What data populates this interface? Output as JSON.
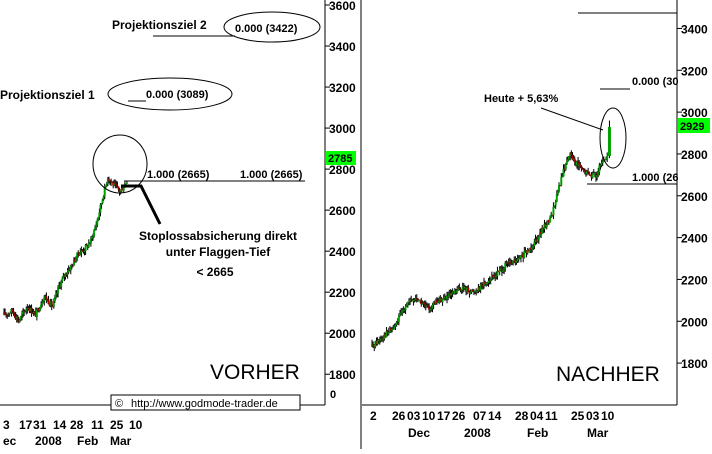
{
  "colors": {
    "bull": "#00a000",
    "bear": "#a00000",
    "wick": "#000000",
    "highlight": "#00ff00",
    "axis": "#000000"
  },
  "chart_data": [
    {
      "type": "candlestick",
      "label": "VORHER",
      "ylim": [
        1650,
        3600
      ],
      "y_ticks": [
        1800,
        2000,
        2200,
        2400,
        2600,
        2800,
        3000,
        3200,
        3400,
        3600
      ],
      "zero_label": "0",
      "current_price": "2785",
      "x_ticks": [
        "3",
        "17",
        "31",
        "14",
        "28",
        "11",
        "25",
        "10"
      ],
      "months": [
        "ec",
        "2008",
        "Feb",
        "Mar"
      ],
      "keypoints": [
        [
          0,
          2090
        ],
        [
          8,
          2110
        ],
        [
          14,
          2060
        ],
        [
          22,
          2130
        ],
        [
          30,
          2090
        ],
        [
          38,
          2180
        ],
        [
          46,
          2130
        ],
        [
          52,
          2230
        ],
        [
          58,
          2290
        ],
        [
          64,
          2330
        ],
        [
          70,
          2390
        ],
        [
          76,
          2410
        ],
        [
          82,
          2450
        ],
        [
          88,
          2550
        ],
        [
          94,
          2680
        ],
        [
          98,
          2760
        ],
        [
          104,
          2720
        ],
        [
          110,
          2690
        ],
        [
          116,
          2745
        ]
      ],
      "annotations": [
        {
          "text": "Projektionsziel 2",
          "value": "0.000 (3422)"
        },
        {
          "text": "Projektionsziel 1",
          "value": "0.000 (3089)"
        },
        {
          "value": "1.000 (2665)"
        },
        {
          "value": "1.000 (2665)"
        },
        {
          "text_lines": [
            "Stoplossabsicherung direkt",
            "unter Flaggen-Tief",
            "< 2665"
          ]
        }
      ],
      "watermark": "http://www.godmode-trader.de",
      "watermark_symbol": "©"
    },
    {
      "type": "candlestick",
      "label": "NACHHER",
      "ylim": [
        1700,
        3450
      ],
      "y_ticks": [
        1800,
        2000,
        2200,
        2400,
        2600,
        2800,
        3000,
        3200,
        3400
      ],
      "current_price": "2929",
      "x_ticks": [
        "2",
        "26",
        "03",
        "10",
        "17",
        "26",
        "07",
        "14",
        "28",
        "04",
        "11",
        "25",
        "03",
        "10"
      ],
      "months": [
        "Dec",
        "2008",
        "Feb",
        "Mar"
      ],
      "keypoints": [
        [
          0,
          1880
        ],
        [
          10,
          1930
        ],
        [
          20,
          1970
        ],
        [
          30,
          2080
        ],
        [
          40,
          2110
        ],
        [
          50,
          2060
        ],
        [
          60,
          2100
        ],
        [
          70,
          2120
        ],
        [
          80,
          2160
        ],
        [
          90,
          2140
        ],
        [
          100,
          2180
        ],
        [
          110,
          2220
        ],
        [
          120,
          2270
        ],
        [
          130,
          2290
        ],
        [
          140,
          2340
        ],
        [
          150,
          2420
        ],
        [
          160,
          2500
        ],
        [
          165,
          2600
        ],
        [
          170,
          2700
        ],
        [
          176,
          2800
        ],
        [
          182,
          2760
        ],
        [
          188,
          2720
        ],
        [
          194,
          2700
        ],
        [
          200,
          2700
        ],
        [
          206,
          2760
        ],
        [
          210,
          2790
        ]
      ],
      "last_candle": {
        "open": 2790,
        "close": 2929,
        "high": 2960,
        "low": 2780
      },
      "annotations": [
        {
          "value": "0.000 (30"
        },
        {
          "value": "1.000 (26"
        },
        {
          "text": "Heute + 5,63%"
        }
      ]
    }
  ]
}
